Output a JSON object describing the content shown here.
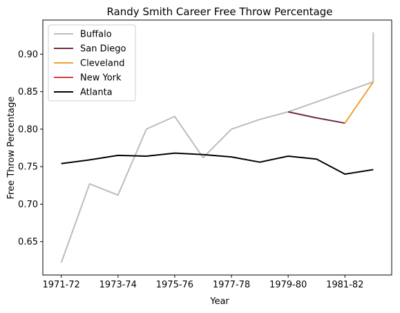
{
  "chart_data": {
    "type": "line",
    "title": "Randy Smith  Career Free Throw Percentage",
    "xlabel": "Year",
    "ylabel": "Free Throw Percentage",
    "x_tick_labels": [
      "1971-72",
      "1973-74",
      "1975-76",
      "1977-78",
      "1979-80",
      "1981-82"
    ],
    "xlim": [
      -0.65,
      11.65
    ],
    "ylim": [
      0.6055,
      0.9455
    ],
    "y_ticks": [
      0.65,
      0.7,
      0.75,
      0.8,
      0.85,
      0.9
    ],
    "y_tick_labels": [
      "0.65",
      "0.70",
      "0.75",
      "0.80",
      "0.85",
      "0.90"
    ],
    "legend_position": "top-left",
    "grid": false,
    "series": [
      {
        "name": "Buffalo",
        "color": "#bcbcbc",
        "x": [
          0,
          1,
          2,
          3,
          4,
          5,
          6,
          7,
          8,
          11,
          11
        ],
        "y": [
          0.622,
          0.727,
          0.712,
          0.8,
          0.817,
          0.762,
          0.8,
          0.813,
          0.823,
          0.863,
          0.929
        ]
      },
      {
        "name": "San Diego",
        "color": "#722845",
        "x": [
          8,
          9,
          10
        ],
        "y": [
          0.823,
          0.815,
          0.808
        ]
      },
      {
        "name": "Cleveland",
        "color": "#f0a030",
        "x": [
          10,
          11
        ],
        "y": [
          0.808,
          0.863
        ]
      },
      {
        "name": "New York",
        "color": "#dd3a3a",
        "x": [],
        "y": []
      },
      {
        "name": "Atlanta",
        "color": "#000000",
        "x": [
          0,
          1,
          2,
          3,
          4,
          5,
          6,
          7,
          8,
          9,
          10,
          11
        ],
        "y": [
          0.754,
          0.759,
          0.765,
          0.764,
          0.768,
          0.766,
          0.763,
          0.756,
          0.764,
          0.76,
          0.74,
          0.746
        ]
      }
    ]
  }
}
